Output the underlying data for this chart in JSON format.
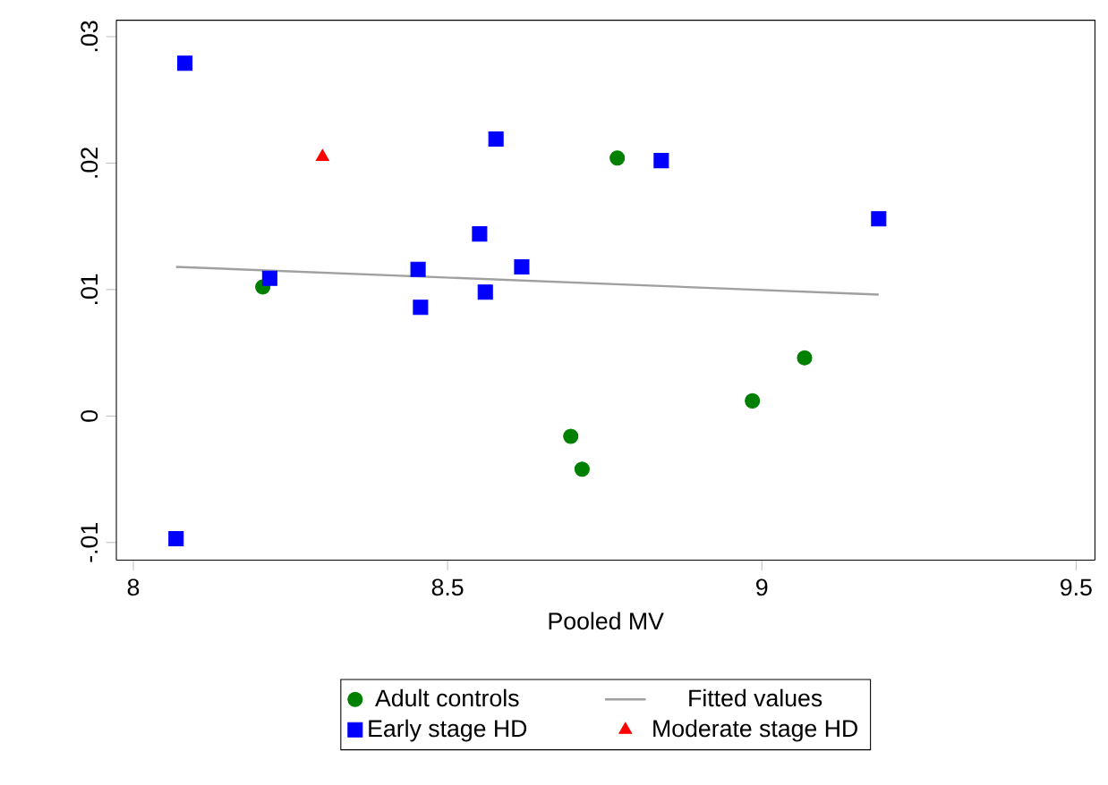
{
  "chart_data": {
    "type": "scatter",
    "xlabel": "Pooled MV",
    "xlim": [
      7.973,
      9.53
    ],
    "ylim": [
      -0.0114,
      0.0313
    ],
    "xticks": [
      8,
      8.5,
      9,
      9.5
    ],
    "yticks": [
      {
        "value": -0.01,
        "label": "-.01"
      },
      {
        "value": 0,
        "label": "0"
      },
      {
        "value": 0.01,
        "label": ".01"
      },
      {
        "value": 0.02,
        "label": ".02"
      },
      {
        "value": 0.03,
        "label": ".03"
      }
    ],
    "grid": false,
    "legend": "bottom",
    "series": [
      {
        "name": "Adult controls",
        "marker": "circle",
        "color": "#008000",
        "x": [
          8.206,
          8.77,
          8.696,
          8.714,
          8.985,
          9.068
        ],
        "values": [
          0.0102,
          0.0204,
          -0.0016,
          -0.0042,
          0.0012,
          0.0046
        ]
      },
      {
        "name": "Fitted values",
        "type": "line",
        "marker": "none",
        "color": "#a0a0a0",
        "x": [
          8.068,
          9.186
        ],
        "values": [
          0.0118,
          0.0096
        ]
      },
      {
        "name": "Early stage HD",
        "marker": "square",
        "color": "#0000ff",
        "x": [
          8.082,
          8.217,
          8.453,
          8.457,
          8.551,
          8.577,
          8.56,
          8.618,
          8.068,
          8.84,
          9.186
        ],
        "values": [
          0.0279,
          0.0109,
          0.0116,
          0.0086,
          0.0144,
          0.0219,
          0.0098,
          0.0118,
          -0.0097,
          0.0202,
          0.0156
        ]
      },
      {
        "name": "Moderate stage HD",
        "marker": "triangle",
        "color": "#ff0000",
        "x": [
          8.301
        ],
        "values": [
          0.0205
        ]
      }
    ]
  }
}
